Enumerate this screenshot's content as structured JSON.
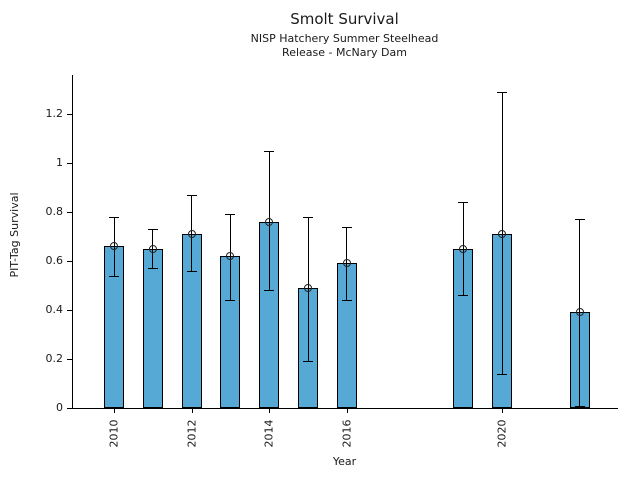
{
  "chart_data": {
    "type": "bar",
    "title": "Smolt Survival",
    "subtitle1": "NISP Hatchery Summer Steelhead",
    "subtitle2": "Release - McNary Dam",
    "xlabel": "Year",
    "ylabel": "PIT-Tag Survival",
    "bar_color": "#57a9d5",
    "bar_edge_color": "#000000",
    "error_color": "#000000",
    "marker": "open-circle",
    "grid": false,
    "legend": "none",
    "xlim": [
      2009,
      2023
    ],
    "ylim": [
      0,
      1.36
    ],
    "bars": [
      {
        "year": 2010,
        "value": 0.66,
        "err_low": 0.54,
        "err_high": 0.78
      },
      {
        "year": 2011,
        "value": 0.65,
        "err_low": 0.57,
        "err_high": 0.73
      },
      {
        "year": 2012,
        "value": 0.71,
        "err_low": 0.56,
        "err_high": 0.87
      },
      {
        "year": 2013,
        "value": 0.62,
        "err_low": 0.44,
        "err_high": 0.79
      },
      {
        "year": 2014,
        "value": 0.76,
        "err_low": 0.48,
        "err_high": 1.05
      },
      {
        "year": 2015,
        "value": 0.49,
        "err_low": 0.19,
        "err_high": 0.78
      },
      {
        "year": 2016,
        "value": 0.59,
        "err_low": 0.44,
        "err_high": 0.74
      },
      {
        "year": 2019,
        "value": 0.65,
        "err_low": 0.46,
        "err_high": 0.84
      },
      {
        "year": 2020,
        "value": 0.71,
        "err_low": 0.14,
        "err_high": 1.29
      },
      {
        "year": 2022,
        "value": 0.39,
        "err_low": 0.01,
        "err_high": 0.77
      }
    ],
    "xticks": [
      {
        "year": 2010,
        "label": "2010"
      },
      {
        "year": 2012,
        "label": "2012"
      },
      {
        "year": 2014,
        "label": "2014"
      },
      {
        "year": 2016,
        "label": "2016"
      },
      {
        "year": 2020,
        "label": "2020"
      }
    ],
    "yticks": [
      {
        "value": 0,
        "label": "0"
      },
      {
        "value": 0.2,
        "label": "0.2"
      },
      {
        "value": 0.4,
        "label": "0.4"
      },
      {
        "value": 0.6,
        "label": "0.6"
      },
      {
        "value": 0.8,
        "label": "0.8"
      },
      {
        "value": 1,
        "label": "1"
      },
      {
        "value": 1.2,
        "label": "1.2"
      }
    ]
  }
}
